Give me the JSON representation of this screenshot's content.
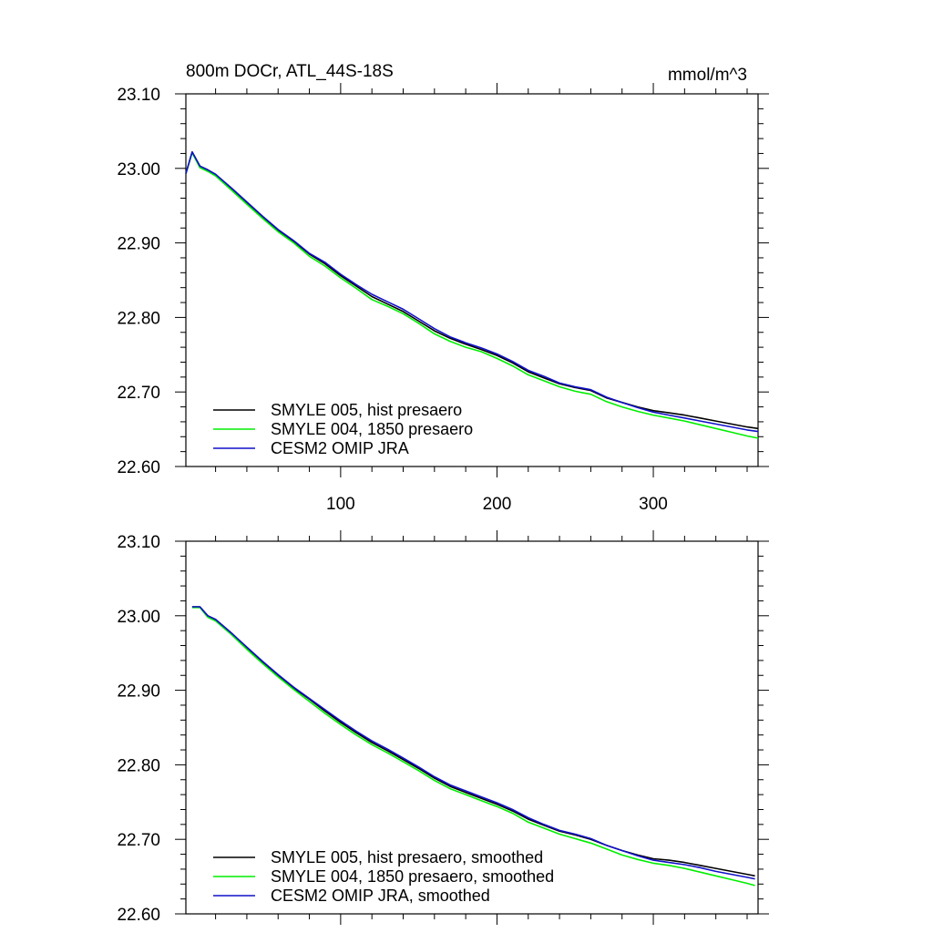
{
  "figure": {
    "title_left": "800m DOCr, ATL_44S-18S",
    "title_right": "mmol/m^3"
  },
  "chart_data": [
    {
      "type": "line",
      "title": "800m DOCr, ATL_44S-18S",
      "units": "mmol/m^3",
      "xlim": [
        1,
        367
      ],
      "ylim": [
        22.6,
        23.1
      ],
      "x_ticks": [
        100,
        200,
        300
      ],
      "x_tick_labels": [
        "100",
        "200",
        "300"
      ],
      "y_ticks": [
        22.6,
        22.7,
        22.8,
        22.9,
        23.0,
        23.1
      ],
      "y_tick_labels": [
        "22.60",
        "22.70",
        "22.80",
        "22.90",
        "23.00",
        "23.10"
      ],
      "grid": false,
      "legend_position": "bottom-left",
      "x": [
        1,
        5,
        10,
        15,
        20,
        30,
        40,
        50,
        60,
        70,
        80,
        90,
        100,
        110,
        120,
        130,
        140,
        150,
        160,
        170,
        180,
        190,
        200,
        210,
        220,
        230,
        240,
        250,
        260,
        270,
        280,
        290,
        300,
        310,
        320,
        330,
        340,
        350,
        360,
        367
      ],
      "series": [
        {
          "name": "SMYLE 005, hist presaero",
          "color": "#000000",
          "values": [
            22.993,
            23.022,
            23.003,
            22.998,
            22.992,
            22.973,
            22.954,
            22.935,
            22.917,
            22.902,
            22.885,
            22.872,
            22.856,
            22.842,
            22.828,
            22.818,
            22.808,
            22.795,
            22.782,
            22.772,
            22.764,
            22.757,
            22.749,
            22.739,
            22.727,
            22.719,
            22.711,
            22.706,
            22.702,
            22.692,
            22.686,
            22.68,
            22.675,
            22.672,
            22.669,
            22.665,
            22.661,
            22.657,
            22.653,
            22.651
          ]
        },
        {
          "name": "SMYLE 004, 1850 presaero",
          "color": "#00ee00",
          "values": [
            22.993,
            23.021,
            23.001,
            22.996,
            22.99,
            22.971,
            22.952,
            22.933,
            22.915,
            22.9,
            22.882,
            22.869,
            22.853,
            22.839,
            22.824,
            22.815,
            22.805,
            22.792,
            22.778,
            22.768,
            22.76,
            22.754,
            22.745,
            22.735,
            22.723,
            22.715,
            22.707,
            22.701,
            22.697,
            22.687,
            22.68,
            22.674,
            22.669,
            22.665,
            22.661,
            22.656,
            22.651,
            22.646,
            22.641,
            22.638
          ]
        },
        {
          "name": "CESM2 OMIP JRA",
          "color": "#1010c8",
          "values": [
            22.993,
            23.022,
            23.003,
            22.998,
            22.992,
            22.974,
            22.955,
            22.936,
            22.918,
            22.903,
            22.886,
            22.874,
            22.858,
            22.844,
            22.831,
            22.821,
            22.811,
            22.798,
            22.785,
            22.774,
            22.766,
            22.759,
            22.751,
            22.741,
            22.729,
            22.721,
            22.712,
            22.707,
            22.703,
            22.693,
            22.686,
            22.679,
            22.673,
            22.669,
            22.665,
            22.661,
            22.657,
            22.653,
            22.649,
            22.647
          ]
        }
      ]
    },
    {
      "type": "line",
      "xlim": [
        1,
        367
      ],
      "ylim": [
        22.6,
        23.1
      ],
      "x_ticks": [
        100,
        200,
        300
      ],
      "y_ticks": [
        22.6,
        22.7,
        22.8,
        22.9,
        23.0,
        23.1
      ],
      "y_tick_labels": [
        "22.60",
        "22.70",
        "22.80",
        "22.90",
        "23.00",
        "23.10"
      ],
      "grid": false,
      "legend_position": "bottom-left",
      "x": [
        5,
        10,
        15,
        20,
        30,
        40,
        50,
        60,
        70,
        80,
        90,
        100,
        110,
        120,
        130,
        140,
        150,
        160,
        170,
        180,
        190,
        200,
        210,
        220,
        230,
        240,
        250,
        260,
        270,
        280,
        290,
        300,
        310,
        320,
        330,
        340,
        350,
        360,
        365
      ],
      "series": [
        {
          "name": "SMYLE 005, hist presaero, smoothed",
          "color": "#000000",
          "values": [
            23.012,
            23.012,
            23.0,
            22.995,
            22.977,
            22.957,
            22.938,
            22.92,
            22.903,
            22.888,
            22.872,
            22.857,
            22.843,
            22.83,
            22.819,
            22.807,
            22.795,
            22.782,
            22.771,
            22.763,
            22.755,
            22.747,
            22.738,
            22.727,
            22.719,
            22.711,
            22.706,
            22.7,
            22.692,
            22.685,
            22.679,
            22.674,
            22.672,
            22.669,
            22.665,
            22.661,
            22.657,
            22.653,
            22.651
          ]
        },
        {
          "name": "SMYLE 004, 1850 presaero, smoothed",
          "color": "#00ee00",
          "values": [
            23.011,
            23.011,
            22.998,
            22.993,
            22.975,
            22.955,
            22.936,
            22.918,
            22.901,
            22.885,
            22.869,
            22.854,
            22.84,
            22.827,
            22.816,
            22.804,
            22.792,
            22.779,
            22.768,
            22.76,
            22.752,
            22.744,
            22.735,
            22.723,
            22.715,
            22.707,
            22.701,
            22.695,
            22.687,
            22.679,
            22.673,
            22.668,
            22.665,
            22.661,
            22.656,
            22.651,
            22.646,
            22.641,
            22.638
          ]
        },
        {
          "name": "CESM2 OMIP JRA, smoothed",
          "color": "#1010c8",
          "values": [
            23.012,
            23.012,
            23.0,
            22.995,
            22.977,
            22.958,
            22.939,
            22.921,
            22.904,
            22.889,
            22.874,
            22.859,
            22.845,
            22.832,
            22.821,
            22.809,
            22.797,
            22.784,
            22.773,
            22.765,
            22.757,
            22.749,
            22.74,
            22.729,
            22.72,
            22.712,
            22.707,
            22.701,
            22.692,
            22.685,
            22.678,
            22.672,
            22.669,
            22.666,
            22.662,
            22.657,
            22.653,
            22.649,
            22.647
          ]
        }
      ]
    }
  ]
}
